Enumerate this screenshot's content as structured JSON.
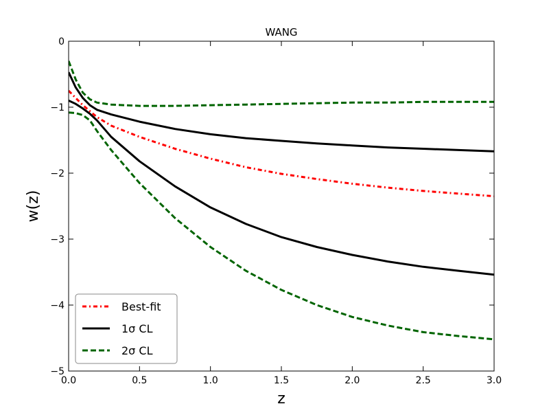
{
  "chart_data": {
    "type": "line",
    "title": "WANG",
    "xlabel": "z",
    "ylabel": "w(z)",
    "xlim": [
      0.0,
      3.0
    ],
    "ylim": [
      -5,
      0
    ],
    "x_ticks": [
      "0.0",
      "0.5",
      "1.0",
      "1.5",
      "2.0",
      "2.5",
      "3.0"
    ],
    "y_ticks": [
      "0",
      "−1",
      "−2",
      "−3",
      "−4",
      "−5"
    ],
    "grid": false,
    "legend_position": "lower-left",
    "legend": [
      {
        "label": "Best-fit",
        "color": "#ff0000",
        "style": "dashdot"
      },
      {
        "label": "1σ CL",
        "color": "#000000",
        "style": "solid"
      },
      {
        "label": "2σ CL",
        "color": "#006400",
        "style": "dashed"
      }
    ],
    "series": [
      {
        "name": "Best-fit",
        "color": "#ff0000",
        "style": "dashdot",
        "x": [
          0,
          0.05,
          0.1,
          0.15,
          0.2,
          0.3,
          0.5,
          0.75,
          1.0,
          1.25,
          1.5,
          1.75,
          2.0,
          2.25,
          2.5,
          2.75,
          3.0
        ],
        "y": [
          -0.75,
          -0.86,
          -0.97,
          -1.06,
          -1.15,
          -1.28,
          -1.45,
          -1.63,
          -1.78,
          -1.91,
          -2.01,
          -2.09,
          -2.16,
          -2.22,
          -2.27,
          -2.31,
          -2.35
        ]
      },
      {
        "name": "1σ upper",
        "color": "#000000",
        "style": "solid",
        "x": [
          0,
          0.05,
          0.1,
          0.15,
          0.2,
          0.3,
          0.5,
          0.75,
          1.0,
          1.25,
          1.5,
          1.75,
          2.0,
          2.25,
          2.5,
          2.75,
          3.0
        ],
        "y": [
          -0.47,
          -0.7,
          -0.86,
          -0.97,
          -1.04,
          -1.11,
          -1.22,
          -1.33,
          -1.41,
          -1.47,
          -1.51,
          -1.55,
          -1.58,
          -1.61,
          -1.63,
          -1.65,
          -1.67
        ]
      },
      {
        "name": "1σ lower",
        "color": "#000000",
        "style": "solid",
        "x": [
          0,
          0.05,
          0.1,
          0.15,
          0.2,
          0.3,
          0.5,
          0.75,
          1.0,
          1.25,
          1.5,
          1.75,
          2.0,
          2.25,
          2.5,
          2.75,
          3.0
        ],
        "y": [
          -0.9,
          -0.95,
          -1.02,
          -1.1,
          -1.2,
          -1.45,
          -1.82,
          -2.2,
          -2.52,
          -2.77,
          -2.97,
          -3.12,
          -3.24,
          -3.34,
          -3.42,
          -3.48,
          -3.54
        ]
      },
      {
        "name": "2σ upper",
        "color": "#006400",
        "style": "dashed",
        "x": [
          0,
          0.05,
          0.1,
          0.15,
          0.2,
          0.3,
          0.5,
          0.75,
          1.0,
          1.25,
          1.5,
          1.75,
          2.0,
          2.25,
          2.5,
          2.75,
          3.0
        ],
        "y": [
          -0.3,
          -0.58,
          -0.78,
          -0.88,
          -0.93,
          -0.96,
          -0.98,
          -0.98,
          -0.97,
          -0.96,
          -0.95,
          -0.94,
          -0.93,
          -0.93,
          -0.92,
          -0.92,
          -0.92
        ]
      },
      {
        "name": "2σ lower",
        "color": "#006400",
        "style": "dashed",
        "x": [
          0,
          0.05,
          0.1,
          0.15,
          0.2,
          0.3,
          0.5,
          0.75,
          1.0,
          1.25,
          1.5,
          1.75,
          2.0,
          2.25,
          2.5,
          2.75,
          3.0
        ],
        "y": [
          -1.08,
          -1.09,
          -1.12,
          -1.2,
          -1.36,
          -1.65,
          -2.15,
          -2.68,
          -3.12,
          -3.48,
          -3.77,
          -4.0,
          -4.18,
          -4.31,
          -4.41,
          -4.47,
          -4.52
        ]
      }
    ]
  }
}
